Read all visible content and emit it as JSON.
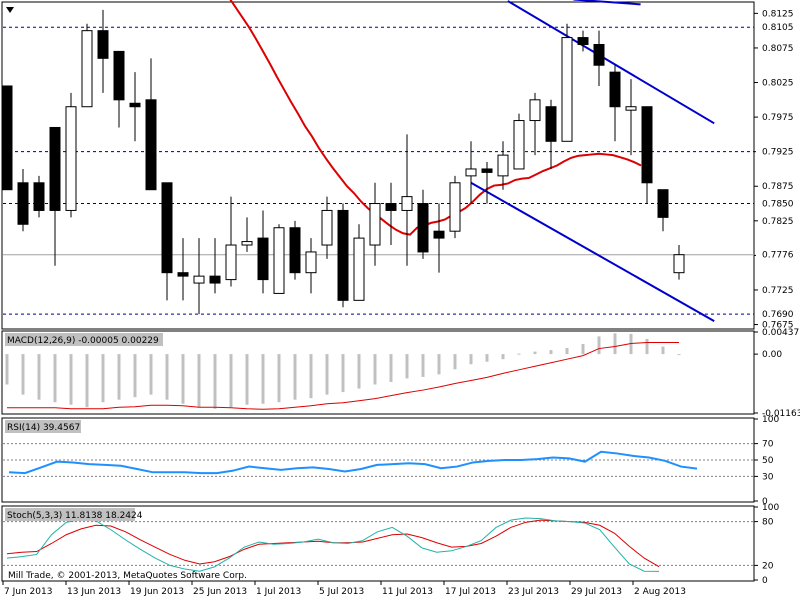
{
  "window": {
    "footer": "Mill Trade, © 2001-2013, MetaQuotes Software Corp."
  },
  "chart_data": [
    {
      "type": "candlestick",
      "name": "price",
      "ylim": [
        0.767,
        0.814
      ],
      "tick_labels": [
        "0.8125",
        "0.8075",
        "0.8025",
        "0.7975",
        "0.7925",
        "0.7875",
        "0.7825",
        "0.7775",
        "0.7725",
        "0.7675"
      ],
      "tick_values": [
        0.8125,
        0.8075,
        0.8025,
        0.7975,
        0.7925,
        0.7875,
        0.7825,
        0.7775,
        0.7725,
        0.7675
      ],
      "level_lines": [
        {
          "label": "0.8105",
          "value": 0.8105
        },
        {
          "label": "0.7925",
          "value": 0.7925
        },
        {
          "label": "0.7850",
          "value": 0.785
        },
        {
          "label": "0.7690",
          "value": 0.769
        }
      ],
      "current_price": {
        "label": "0.7776",
        "value": 0.7776
      },
      "candles": [
        {
          "o": 0.802,
          "h": 0.802,
          "l": 0.787,
          "c": 0.787
        },
        {
          "o": 0.788,
          "h": 0.79,
          "l": 0.781,
          "c": 0.782
        },
        {
          "o": 0.788,
          "h": 0.789,
          "l": 0.783,
          "c": 0.784
        },
        {
          "o": 0.796,
          "h": 0.796,
          "l": 0.776,
          "c": 0.784
        },
        {
          "o": 0.784,
          "h": 0.801,
          "l": 0.783,
          "c": 0.799
        },
        {
          "o": 0.799,
          "h": 0.811,
          "l": 0.799,
          "c": 0.81
        },
        {
          "o": 0.81,
          "h": 0.813,
          "l": 0.801,
          "c": 0.806
        },
        {
          "o": 0.807,
          "h": 0.807,
          "l": 0.796,
          "c": 0.8
        },
        {
          "o": 0.7995,
          "h": 0.804,
          "l": 0.794,
          "c": 0.799
        },
        {
          "o": 0.8,
          "h": 0.806,
          "l": 0.787,
          "c": 0.787
        },
        {
          "o": 0.788,
          "h": 0.788,
          "l": 0.771,
          "c": 0.775
        },
        {
          "o": 0.775,
          "h": 0.78,
          "l": 0.771,
          "c": 0.7745
        },
        {
          "o": 0.7735,
          "h": 0.78,
          "l": 0.769,
          "c": 0.7745
        },
        {
          "o": 0.7745,
          "h": 0.78,
          "l": 0.772,
          "c": 0.7735
        },
        {
          "o": 0.774,
          "h": 0.786,
          "l": 0.773,
          "c": 0.779
        },
        {
          "o": 0.779,
          "h": 0.783,
          "l": 0.778,
          "c": 0.7795
        },
        {
          "o": 0.78,
          "h": 0.784,
          "l": 0.772,
          "c": 0.774
        },
        {
          "o": 0.772,
          "h": 0.782,
          "l": 0.772,
          "c": 0.7815
        },
        {
          "o": 0.7815,
          "h": 0.7825,
          "l": 0.774,
          "c": 0.775
        },
        {
          "o": 0.775,
          "h": 0.78,
          "l": 0.772,
          "c": 0.778
        },
        {
          "o": 0.779,
          "h": 0.786,
          "l": 0.777,
          "c": 0.784
        },
        {
          "o": 0.784,
          "h": 0.785,
          "l": 0.77,
          "c": 0.771
        },
        {
          "o": 0.771,
          "h": 0.782,
          "l": 0.771,
          "c": 0.78
        },
        {
          "o": 0.779,
          "h": 0.788,
          "l": 0.776,
          "c": 0.785
        },
        {
          "o": 0.785,
          "h": 0.788,
          "l": 0.779,
          "c": 0.784
        },
        {
          "o": 0.784,
          "h": 0.795,
          "l": 0.776,
          "c": 0.786
        },
        {
          "o": 0.785,
          "h": 0.787,
          "l": 0.777,
          "c": 0.778
        },
        {
          "o": 0.781,
          "h": 0.785,
          "l": 0.775,
          "c": 0.78
        },
        {
          "o": 0.781,
          "h": 0.789,
          "l": 0.78,
          "c": 0.788
        },
        {
          "o": 0.789,
          "h": 0.794,
          "l": 0.785,
          "c": 0.79
        },
        {
          "o": 0.79,
          "h": 0.791,
          "l": 0.785,
          "c": 0.7895
        },
        {
          "o": 0.789,
          "h": 0.794,
          "l": 0.787,
          "c": 0.792
        },
        {
          "o": 0.79,
          "h": 0.798,
          "l": 0.79,
          "c": 0.797
        },
        {
          "o": 0.797,
          "h": 0.801,
          "l": 0.792,
          "c": 0.8
        },
        {
          "o": 0.799,
          "h": 0.8,
          "l": 0.79,
          "c": 0.794
        },
        {
          "o": 0.794,
          "h": 0.811,
          "l": 0.794,
          "c": 0.809
        },
        {
          "o": 0.809,
          "h": 0.81,
          "l": 0.807,
          "c": 0.808
        },
        {
          "o": 0.808,
          "h": 0.81,
          "l": 0.802,
          "c": 0.805
        },
        {
          "o": 0.804,
          "h": 0.805,
          "l": 0.794,
          "c": 0.799
        },
        {
          "o": 0.7985,
          "h": 0.803,
          "l": 0.792,
          "c": 0.799
        },
        {
          "o": 0.799,
          "h": 0.799,
          "l": 0.785,
          "c": 0.788
        },
        {
          "o": 0.787,
          "h": 0.787,
          "l": 0.781,
          "c": 0.783
        },
        {
          "o": 0.775,
          "h": 0.779,
          "l": 0.774,
          "c": 0.7776
        }
      ],
      "ma": [
        0.815,
        0.8135,
        0.812,
        0.8105,
        0.8088,
        0.807,
        0.8052,
        0.8033,
        0.8015,
        0.7997,
        0.798,
        0.7962,
        0.7947,
        0.793,
        0.7915,
        0.7901,
        0.7888,
        0.7875,
        0.7865,
        0.7853,
        0.7843,
        0.7835,
        0.7827,
        0.7819,
        0.7812,
        0.7807,
        0.7805,
        0.7815,
        0.7818,
        0.7822,
        0.7824,
        0.7827,
        0.7833,
        0.7838,
        0.7844,
        0.7853,
        0.7863,
        0.7871,
        0.7876,
        0.7877,
        0.7879,
        0.7884,
        0.7886,
        0.7887,
        0.7892,
        0.7897,
        0.7901,
        0.7905,
        0.7911,
        0.7916,
        0.7919,
        0.792,
        0.7921,
        0.7922,
        0.7921,
        0.792,
        0.7917,
        0.7914,
        0.791,
        0.7905
      ],
      "trend_lines": [
        {
          "x1": 31.3,
          "y1": 0.8143,
          "x2": 44.2,
          "y2": 0.7966
        },
        {
          "x1": 29.0,
          "y1": 0.788,
          "x2": 44.2,
          "y2": 0.768
        },
        {
          "x1": 35.4,
          "y1": 0.8145,
          "x2": 39.6,
          "y2": 0.8138
        }
      ]
    },
    {
      "type": "histogram",
      "name": "macd",
      "label": "MACD(12,26,9) -0.00005 0.00229",
      "ylim": [
        -0.01163,
        0.00437
      ],
      "tick_labels": [
        "0.00437",
        "0.00",
        "-0.01163"
      ],
      "tick_values": [
        0.00437,
        0.0,
        -0.01163
      ],
      "bars": [
        -0.006,
        -0.008,
        -0.009,
        -0.0095,
        -0.01,
        -0.0105,
        -0.0095,
        -0.009,
        -0.0085,
        -0.008,
        -0.009,
        -0.0098,
        -0.0105,
        -0.0108,
        -0.0105,
        -0.01,
        -0.0098,
        -0.0095,
        -0.009,
        -0.0087,
        -0.008,
        -0.0075,
        -0.0068,
        -0.006,
        -0.0055,
        -0.0048,
        -0.0045,
        -0.004,
        -0.003,
        -0.002,
        -0.0015,
        -0.001,
        0.0001,
        0.0005,
        0.0008,
        0.0012,
        0.002,
        0.0035,
        0.0041,
        0.004,
        0.003,
        0.0015,
        -0.0001
      ],
      "signal": [
        -0.0106,
        -0.0106,
        -0.0106,
        -0.0106,
        -0.0108,
        -0.0108,
        -0.0108,
        -0.0105,
        -0.0104,
        -0.0101,
        -0.0101,
        -0.0102,
        -0.0105,
        -0.0105,
        -0.0106,
        -0.0108,
        -0.0109,
        -0.0108,
        -0.0105,
        -0.0102,
        -0.0098,
        -0.0096,
        -0.0092,
        -0.0088,
        -0.0082,
        -0.0076,
        -0.0071,
        -0.0065,
        -0.0058,
        -0.0052,
        -0.0046,
        -0.0038,
        -0.0031,
        -0.0024,
        -0.0017,
        -0.001,
        -0.0003,
        0.0011,
        0.0015,
        0.0021,
        0.0023,
        0.0023,
        0.0023
      ]
    },
    {
      "type": "line",
      "name": "rsi",
      "label": "RSI(14) 39.4567",
      "ylim": [
        0,
        100
      ],
      "tick_labels": [
        "100",
        "70",
        "50",
        "30",
        "0"
      ],
      "tick_values": [
        100,
        70,
        50,
        30,
        0
      ],
      "levels": [
        70,
        50,
        30
      ],
      "values": [
        35,
        34,
        41,
        48,
        47,
        45,
        44,
        43,
        39,
        35,
        35,
        35,
        34,
        34,
        37,
        42,
        40,
        38,
        40,
        41,
        39,
        36,
        39,
        44,
        45,
        46,
        45,
        40,
        42,
        47,
        49,
        50,
        50,
        51,
        53,
        52,
        48,
        60,
        58,
        55,
        53,
        49,
        42,
        39.4567
      ]
    },
    {
      "type": "line",
      "name": "stochastic",
      "label": "Stoch(5,3,3) 11.8138 18.2424",
      "ylim": [
        0,
        100
      ],
      "tick_labels": [
        "100",
        "80",
        "20",
        "0"
      ],
      "tick_values": [
        100,
        80,
        20,
        0
      ],
      "levels": [
        80,
        20
      ],
      "main": [
        30,
        32,
        35,
        62,
        79,
        83,
        81,
        69,
        55,
        42,
        30,
        20,
        15,
        12,
        18,
        30,
        45,
        52,
        49,
        50,
        52,
        56,
        51,
        50,
        54,
        66,
        72,
        60,
        44,
        38,
        40,
        46,
        54,
        72,
        82,
        85,
        84,
        81,
        80,
        78,
        69,
        45,
        22,
        12,
        11.8138
      ],
      "signal": [
        36,
        38,
        39,
        50,
        62,
        70,
        75,
        74,
        66,
        55,
        45,
        35,
        27,
        22,
        25,
        32,
        42,
        49,
        50,
        51,
        52,
        53,
        51,
        51,
        52,
        57,
        62,
        63,
        58,
        51,
        45,
        46,
        50,
        60,
        72,
        79,
        82,
        81,
        80,
        79,
        75,
        64,
        46,
        30,
        18.2424
      ]
    }
  ],
  "dates": [
    "7 Jun 2013",
    "13 Jun 2013",
    "19 Jun 2013",
    "25 Jun 2013",
    "1 Jul 2013",
    "5 Jul 2013",
    "11 Jul 2013",
    "17 Jul 2013",
    "23 Jul 2013",
    "29 Jul 2013",
    "2 Aug 2013"
  ],
  "colors": {
    "background": "#ffffff",
    "grid": "#000080",
    "moving_average": "#dd0000",
    "trend_channel": "#0000cc",
    "macd_bar": "#c0c0c0",
    "macd_signal": "#dd0000",
    "rsi_line": "#1e90ff",
    "stoch_main": "#20b2aa",
    "stoch_signal": "#dd0000",
    "label_box": "#c0c0c0"
  }
}
